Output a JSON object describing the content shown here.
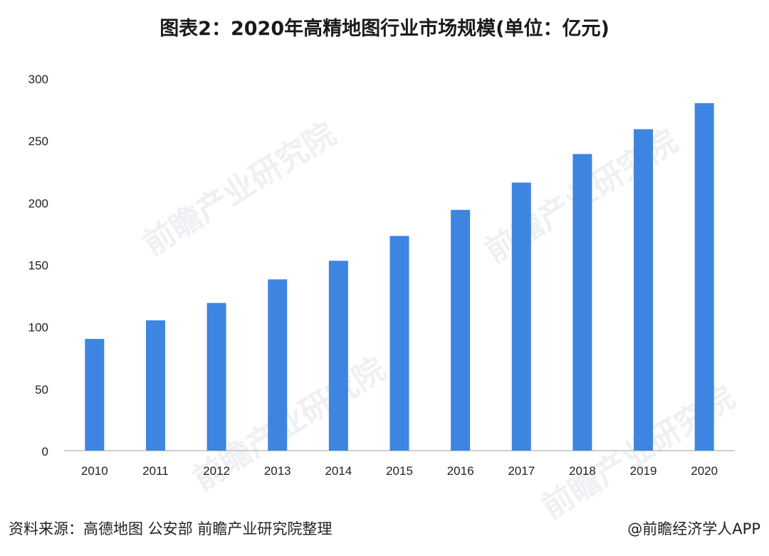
{
  "title": "图表2：2020年高精地图行业市场规模(单位：亿元)",
  "source": "资料来源：高德地图 公安部 前瞻产业研究院整理",
  "credit": "@前瞻经济学人APP",
  "watermark": "前瞻产业研究院",
  "colors": {
    "bar": "#3d85e0",
    "axis": "#bfbfbf",
    "text": "#222222"
  },
  "chart_data": {
    "type": "bar",
    "categories": [
      "2010",
      "2011",
      "2012",
      "2013",
      "2014",
      "2015",
      "2016",
      "2017",
      "2018",
      "2019",
      "2020"
    ],
    "values": [
      90,
      105,
      119,
      138,
      153,
      173,
      194,
      216,
      239,
      259,
      280
    ],
    "title": "图表2：2020年高精地图行业市场规模(单位：亿元)",
    "xlabel": "",
    "ylabel": "",
    "ylim": [
      0,
      300
    ],
    "yticks": [
      0,
      50,
      100,
      150,
      200,
      250,
      300
    ],
    "grid": false,
    "legend": "none"
  }
}
